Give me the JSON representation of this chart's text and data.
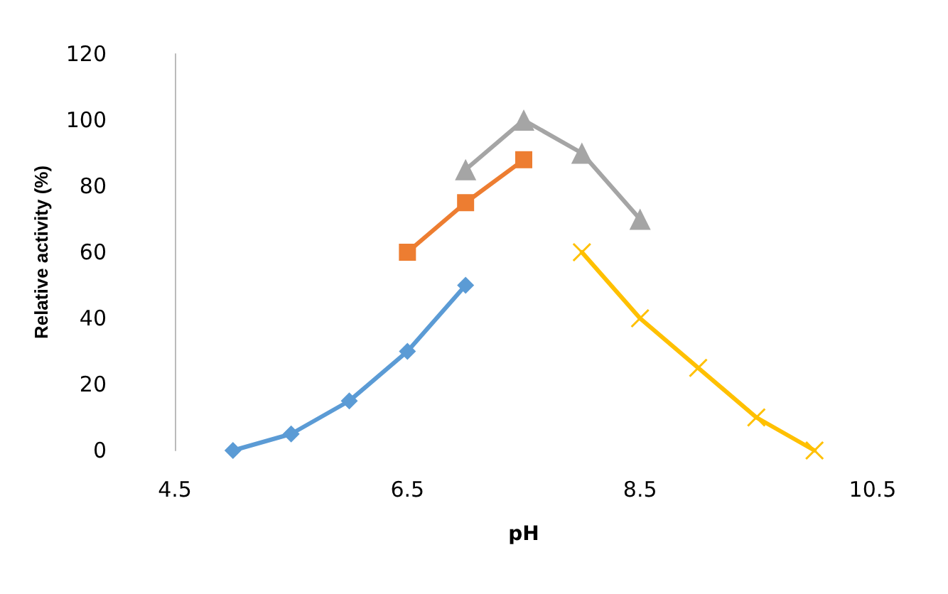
{
  "chart_data": {
    "type": "line",
    "xlabel": "pH",
    "ylabel": "Relative activity (%)",
    "xlim": [
      4.5,
      10.5
    ],
    "xticks": [
      4.5,
      6.5,
      8.5,
      10.5
    ],
    "ylim": [
      0,
      120
    ],
    "yticks": [
      0,
      20,
      40,
      60,
      80,
      100,
      120
    ],
    "grid": false,
    "series": [
      {
        "color": "#5b9bd5",
        "marker": "diamond",
        "x": [
          5,
          5.5,
          6,
          6.5,
          7
        ],
        "values": [
          0,
          5,
          15,
          30,
          50
        ]
      },
      {
        "color": "#ed7d31",
        "marker": "square",
        "x": [
          6.5,
          7,
          7.5
        ],
        "values": [
          60,
          75,
          88
        ]
      },
      {
        "color": "#a5a5a5",
        "marker": "triangle",
        "x": [
          7,
          7.5,
          8,
          8.5
        ],
        "values": [
          85,
          100,
          90,
          70
        ]
      },
      {
        "color": "#ffc000",
        "marker": "cross",
        "x": [
          8,
          8.5,
          9,
          9.5,
          10
        ],
        "values": [
          60,
          40,
          25,
          10,
          0
        ]
      }
    ]
  }
}
